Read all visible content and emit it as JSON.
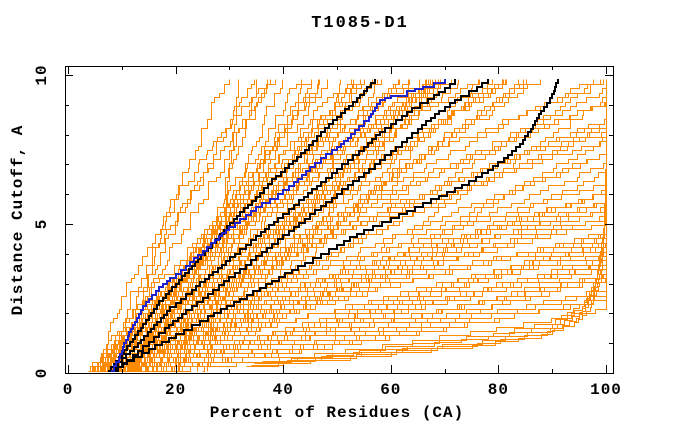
{
  "window": {
    "title": "T1085-D1"
  },
  "chart_data": {
    "type": "line",
    "title": "T1085-D1",
    "xlabel": "Percent of Residues (CA)",
    "ylabel": "Distance Cutoff, A",
    "xlim": [
      0,
      100
    ],
    "ylim": [
      0,
      10
    ],
    "x_major_ticks": [
      0,
      20,
      40,
      60,
      80,
      100
    ],
    "x_minor_ticks": [
      10,
      30,
      50,
      70,
      90
    ],
    "y_major_ticks": [
      0,
      5,
      10
    ],
    "y_minor_ticks": [
      1,
      2,
      3,
      4,
      6,
      7,
      8,
      9
    ],
    "grid": false,
    "legend": "none",
    "frame": "boxed frame with inward mirrored ticks, rotated y tick labels",
    "colors": {
      "models": "#FF8C00",
      "highlight_black": "#000000",
      "highlight_blue": "#2222CC",
      "frame": "#000000",
      "text": "#000000",
      "background": "#FFFFFF"
    },
    "highlight_series": [
      {
        "name": "blue-curve",
        "color_key": "highlight_blue",
        "width": 2,
        "points": [
          [
            8,
            0.08
          ],
          [
            9.5,
            0.5
          ],
          [
            10.5,
            1.0
          ],
          [
            12,
            1.6
          ],
          [
            13.5,
            2.1
          ],
          [
            15,
            2.5
          ],
          [
            17,
            2.9
          ],
          [
            19,
            3.2
          ],
          [
            22,
            3.6
          ],
          [
            25,
            4.1
          ],
          [
            28,
            4.6
          ],
          [
            30,
            4.9
          ],
          [
            33,
            5.3
          ],
          [
            36,
            5.7
          ],
          [
            39,
            6.0
          ],
          [
            42,
            6.4
          ],
          [
            45,
            6.9
          ],
          [
            47,
            7.2
          ],
          [
            50,
            7.6
          ],
          [
            52,
            7.9
          ],
          [
            54,
            8.3
          ],
          [
            56,
            8.6
          ],
          [
            57,
            8.9
          ],
          [
            58,
            9.15
          ],
          [
            60,
            9.3
          ],
          [
            63,
            9.45
          ],
          [
            66,
            9.6
          ],
          [
            68,
            9.72
          ],
          [
            70,
            9.85
          ]
        ]
      },
      {
        "name": "black-curve-1",
        "color_key": "highlight_black",
        "width": 2,
        "points": [
          [
            7.5,
            0.08
          ],
          [
            9,
            0.4
          ],
          [
            11,
            0.9
          ],
          [
            13,
            1.4
          ],
          [
            15,
            1.9
          ],
          [
            17,
            2.4
          ],
          [
            20,
            3.0
          ],
          [
            23,
            3.6
          ],
          [
            26,
            4.2
          ],
          [
            29,
            4.8
          ],
          [
            32,
            5.4
          ],
          [
            35,
            5.9
          ],
          [
            38,
            6.5
          ],
          [
            41,
            7.0
          ],
          [
            44,
            7.5
          ],
          [
            47,
            8.1
          ],
          [
            50,
            8.6
          ],
          [
            53,
            9.1
          ],
          [
            55,
            9.45
          ],
          [
            57,
            9.85
          ]
        ]
      },
      {
        "name": "black-curve-2",
        "color_key": "highlight_black",
        "width": 2,
        "points": [
          [
            8,
            0.08
          ],
          [
            10,
            0.5
          ],
          [
            13,
            1.0
          ],
          [
            16,
            1.6
          ],
          [
            19,
            2.2
          ],
          [
            23,
            2.8
          ],
          [
            27,
            3.4
          ],
          [
            31,
            4.0
          ],
          [
            35,
            4.6
          ],
          [
            39,
            5.2
          ],
          [
            43,
            5.8
          ],
          [
            47,
            6.4
          ],
          [
            51,
            7.0
          ],
          [
            55,
            7.6
          ],
          [
            58,
            8.1
          ],
          [
            61,
            8.5
          ],
          [
            64,
            8.9
          ],
          [
            67,
            9.2
          ],
          [
            70,
            9.55
          ],
          [
            72,
            9.85
          ]
        ]
      },
      {
        "name": "black-curve-3",
        "color_key": "highlight_black",
        "width": 2,
        "points": [
          [
            8.5,
            0.08
          ],
          [
            11,
            0.45
          ],
          [
            14,
            0.9
          ],
          [
            18,
            1.5
          ],
          [
            22,
            2.1
          ],
          [
            27,
            2.8
          ],
          [
            32,
            3.5
          ],
          [
            37,
            4.2
          ],
          [
            42,
            4.9
          ],
          [
            47,
            5.6
          ],
          [
            52,
            6.3
          ],
          [
            57,
            7.0
          ],
          [
            61,
            7.6
          ],
          [
            65,
            8.2
          ],
          [
            69,
            8.8
          ],
          [
            73,
            9.3
          ],
          [
            76,
            9.6
          ],
          [
            78,
            9.85
          ]
        ]
      },
      {
        "name": "black-curve-4",
        "color_key": "highlight_black",
        "width": 2,
        "points": [
          [
            8,
            0.08
          ],
          [
            11,
            0.4
          ],
          [
            15,
            0.8
          ],
          [
            20,
            1.3
          ],
          [
            26,
            1.9
          ],
          [
            32,
            2.5
          ],
          [
            38,
            3.1
          ],
          [
            44,
            3.7
          ],
          [
            50,
            4.3
          ],
          [
            55,
            4.8
          ],
          [
            60,
            5.2
          ],
          [
            66,
            5.7
          ],
          [
            72,
            6.2
          ],
          [
            77,
            6.7
          ],
          [
            81,
            7.2
          ],
          [
            84,
            7.7
          ],
          [
            86,
            8.2
          ],
          [
            88,
            8.8
          ],
          [
            90,
            9.35
          ],
          [
            91,
            9.85
          ]
        ]
      }
    ],
    "outlier_series": [
      {
        "name": "orange-outlier-1",
        "points": [
          [
            33,
            0.25
          ],
          [
            45,
            0.45
          ],
          [
            60,
            0.7
          ],
          [
            75,
            0.95
          ],
          [
            88,
            1.3
          ],
          [
            94,
            1.7
          ],
          [
            97,
            2.2
          ],
          [
            99,
            3.2
          ],
          [
            99.7,
            5.0
          ],
          [
            100,
            7.0
          ],
          [
            100,
            9.85
          ]
        ]
      },
      {
        "name": "orange-outlier-2",
        "points": [
          [
            34,
            0.28
          ],
          [
            46,
            0.5
          ],
          [
            61,
            0.76
          ],
          [
            76,
            1.02
          ],
          [
            89,
            1.4
          ],
          [
            94.5,
            1.85
          ],
          [
            97.3,
            2.45
          ],
          [
            99.2,
            3.6
          ],
          [
            99.8,
            5.6
          ],
          [
            100,
            7.8
          ],
          [
            100,
            9.85
          ]
        ]
      },
      {
        "name": "orange-outlier-3",
        "points": [
          [
            34.5,
            0.32
          ],
          [
            47,
            0.56
          ],
          [
            62,
            0.84
          ],
          [
            77,
            1.12
          ],
          [
            89.5,
            1.52
          ],
          [
            95,
            2.05
          ],
          [
            97.6,
            2.75
          ],
          [
            99.3,
            4.0
          ],
          [
            99.9,
            6.2
          ],
          [
            100,
            8.4
          ],
          [
            100,
            9.85
          ]
        ]
      },
      {
        "name": "orange-outlier-4",
        "points": [
          [
            35,
            0.36
          ],
          [
            48,
            0.62
          ],
          [
            63,
            0.92
          ],
          [
            78,
            1.24
          ],
          [
            90,
            1.66
          ],
          [
            95.5,
            2.25
          ],
          [
            98,
            3.05
          ],
          [
            99.5,
            4.5
          ],
          [
            100,
            6.8
          ],
          [
            100,
            9.85
          ]
        ]
      },
      {
        "name": "orange-outlier-5",
        "points": [
          [
            36,
            0.4
          ],
          [
            49,
            0.68
          ],
          [
            64,
            1.0
          ],
          [
            79,
            1.35
          ],
          [
            90.5,
            1.8
          ],
          [
            96,
            2.45
          ],
          [
            98.3,
            3.35
          ],
          [
            99.6,
            5.0
          ],
          [
            100,
            7.4
          ],
          [
            100,
            9.85
          ]
        ]
      }
    ],
    "orange_band": {
      "name": "orange-model-curves",
      "count": 110,
      "seed": 1085,
      "y_top": 9.85,
      "start_x_main_range": [
        3.5,
        12.5
      ],
      "start_x_late_range": [
        12,
        26
      ],
      "late_start_share": 0.1,
      "end_groups": [
        {
          "share": 0.12,
          "range": [
            28,
            48
          ]
        },
        {
          "share": 0.38,
          "range": [
            48,
            85
          ]
        },
        {
          "share": 0.5,
          "range": [
            85,
            280
          ]
        }
      ],
      "curvature_range": [
        0.7,
        1.5
      ],
      "wobble": 0.9
    }
  }
}
